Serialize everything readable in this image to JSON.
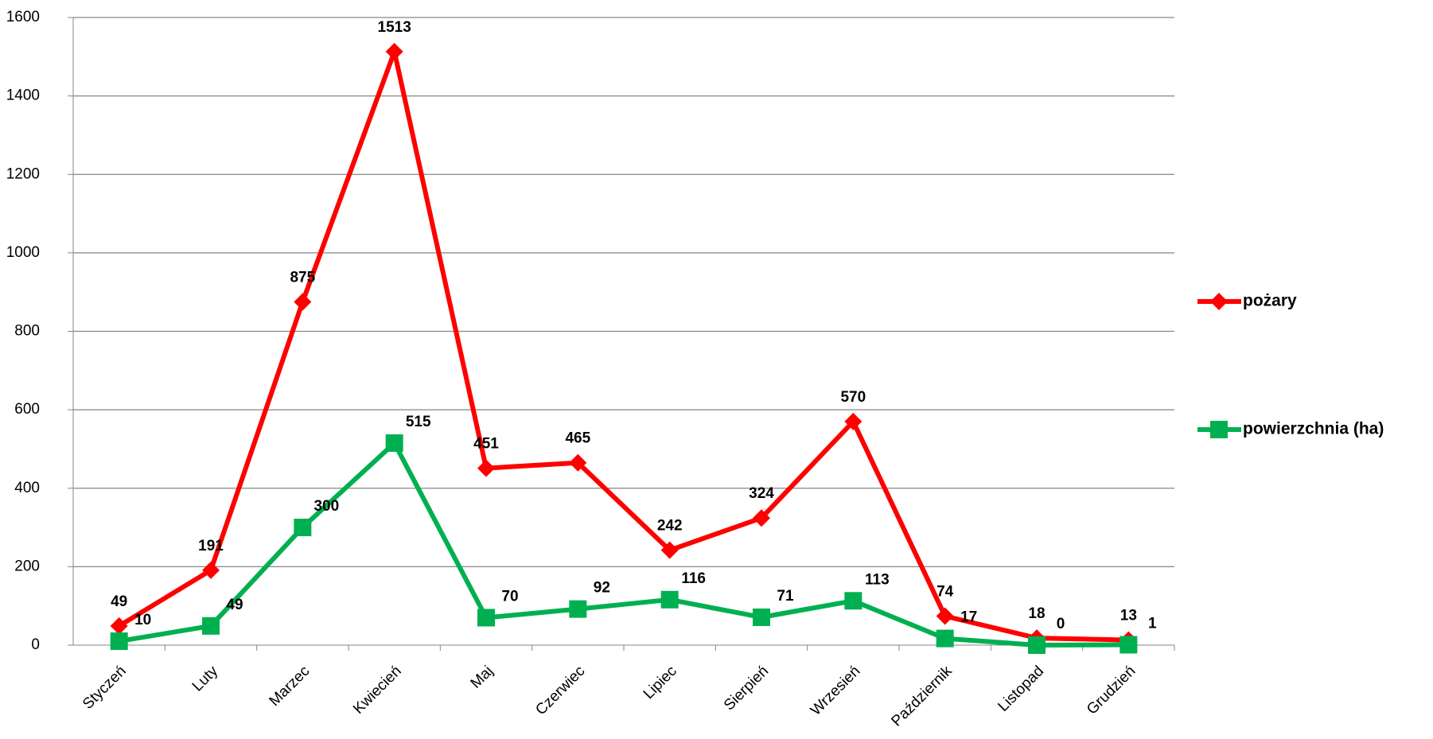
{
  "chart_data": {
    "type": "line",
    "categories": [
      "Styczeń",
      "Luty",
      "Marzec",
      "Kwiecień",
      "Maj",
      "Czerwiec",
      "Lipiec",
      "Sierpień",
      "Wrzesień",
      "Październik",
      "Listopad",
      "Grudzień"
    ],
    "series": [
      {
        "name": "pożary",
        "color": "#ff0000",
        "marker": "diamond",
        "values": [
          49,
          191,
          875,
          1513,
          451,
          465,
          242,
          324,
          570,
          74,
          18,
          13
        ]
      },
      {
        "name": "powierzchnia (ha)",
        "color": "#00b050",
        "marker": "square",
        "values": [
          10,
          49,
          300,
          515,
          70,
          92,
          116,
          71,
          113,
          17,
          0,
          1
        ]
      }
    ],
    "ylim": [
      0,
      1600
    ],
    "yticks": [
      0,
      200,
      400,
      600,
      800,
      1000,
      1200,
      1400,
      1600
    ],
    "grid": true
  }
}
